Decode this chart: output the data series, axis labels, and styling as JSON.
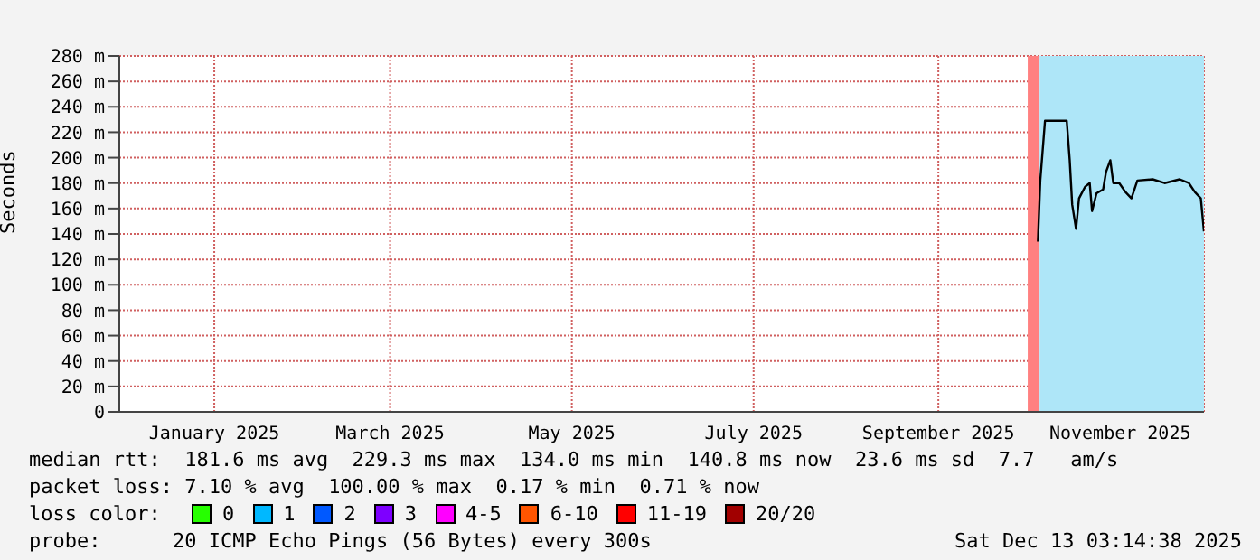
{
  "chart_data": {
    "type": "line",
    "ylabel": "Seconds",
    "xlim": [
      "2024-12-14T03:14",
      "2025-12-13T03:14"
    ],
    "xticks": [
      {
        "value": "2025-01-15",
        "label": "January 2025"
      },
      {
        "value": "2025-03-15",
        "label": "March 2025"
      },
      {
        "value": "2025-05-15",
        "label": "May 2025"
      },
      {
        "value": "2025-07-15",
        "label": "July 2025"
      },
      {
        "value": "2025-09-15",
        "label": "September 2025"
      },
      {
        "value": "2025-11-15",
        "label": "November 2025"
      }
    ],
    "ylim": [
      0,
      280
    ],
    "yticks": [
      0,
      {
        "value": 20,
        "label": "20 m"
      },
      {
        "value": 40,
        "label": "40 m"
      },
      {
        "value": 60,
        "label": "60 m"
      },
      {
        "value": 80,
        "label": "80 m"
      },
      {
        "value": 100,
        "label": "100 m"
      },
      {
        "value": 120,
        "label": "120 m"
      },
      {
        "value": 140,
        "label": "140 m"
      },
      {
        "value": 160,
        "label": "160 m"
      },
      {
        "value": 180,
        "label": "180 m"
      },
      {
        "value": 200,
        "label": "200 m"
      },
      {
        "value": 220,
        "label": "220 m"
      },
      {
        "value": 240,
        "label": "240 m"
      },
      {
        "value": 260,
        "label": "260 m"
      },
      {
        "value": 280,
        "label": "280 m"
      }
    ],
    "grid": true,
    "legend": false,
    "bands": [
      {
        "axis": "x",
        "from": "2025-10-15",
        "to": "2025-10-19",
        "color": "#ff8080"
      },
      {
        "axis": "x",
        "from": "2025-10-19",
        "to": "2025-12-13T03:14",
        "color": "#aee6f8"
      }
    ],
    "series": [
      {
        "color": "#000000",
        "x": [
          "2025-10-18T10:00",
          "2025-10-19T05:00",
          "2025-10-20T19:00",
          "2025-10-28T02:00",
          "2025-10-29T02:00",
          "2025-10-29T22:00",
          "2025-10-31T05:00",
          "2025-11-01T05:00",
          "2025-11-03T05:00",
          "2025-11-04T19:00",
          "2025-11-05T14:00",
          "2025-11-07T02:00",
          "2025-11-09T07:00",
          "2025-11-10T07:00",
          "2025-11-11T17:00",
          "2025-11-12T17:00",
          "2025-11-14T17:00",
          "2025-11-16T19:00",
          "2025-11-18T19:00",
          "2025-11-20T19:00",
          "2025-11-25T22:00",
          "2025-11-29T22:00",
          "2025-12-05T00:00",
          "2025-12-08T02:00",
          "2025-12-10T02:00",
          "2025-12-12T02:00",
          "2025-12-13T03:00"
        ],
        "values": [
          134,
          182,
          229,
          229,
          198,
          163,
          144,
          168,
          177,
          180,
          158,
          172,
          175,
          189,
          198,
          180,
          180,
          173,
          168,
          182,
          183,
          180,
          183,
          180,
          173,
          168,
          142
        ]
      }
    ],
    "annotations": [
      "median rtt:  181.6 ms avg  229.3 ms max  134.0 ms min  140.8 ms now  23.6 ms sd  7.7   am/s",
      "packet loss: 7.10 % avg  100.00 % max  0.17 % min  0.71 % now",
      "loss color:",
      "0",
      "1",
      "2",
      "3",
      "4-5",
      "6-10",
      "11-19",
      "20/20",
      "probe:      20 ICMP Echo Pings (56 Bytes) every 300s",
      "Sat Dec 13 03:14:38 2025"
    ]
  }
}
